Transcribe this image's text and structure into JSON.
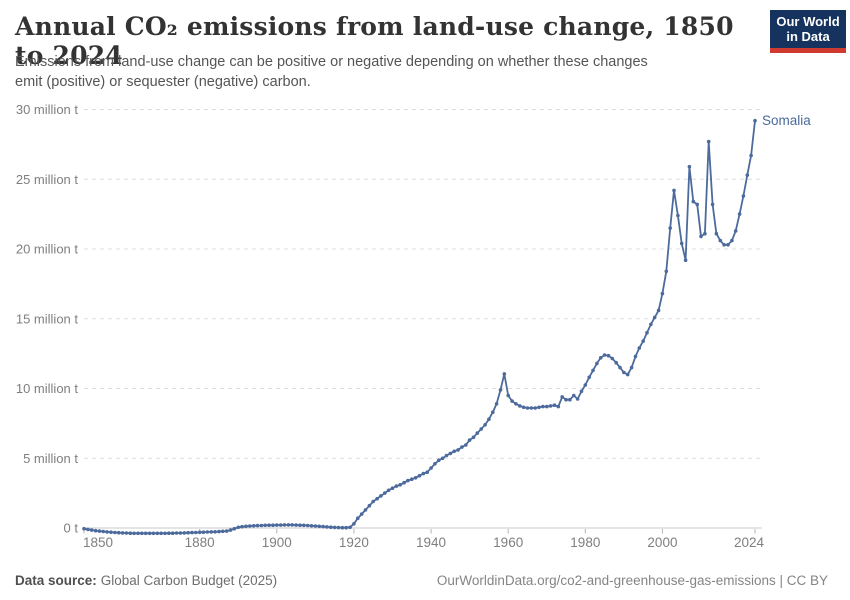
{
  "header": {
    "title": "Annual CO₂ emissions from land-use change, 1850 to 2024",
    "subtitle": "Emissions from land-use change can be positive or negative depending on whether these changes emit (positive) or sequester (negative) carbon.",
    "logo": {
      "line1": "Our World",
      "line2": "in Data",
      "bg_color": "#15335e",
      "bar_color": "#cf3a30"
    }
  },
  "footer": {
    "datasource_label": "Data source:",
    "datasource_value": "Global Carbon Budget (2025)",
    "right_text": "OurWorldinData.org/co2-and-greenhouse-gas-emissions | CC BY"
  },
  "chart_data": {
    "type": "line",
    "title": "Annual CO₂ emissions from land-use change, 1850 to 2024",
    "xlabel": "",
    "ylabel": "",
    "unit": "million t",
    "grid": "dashed horizontal",
    "legend_position": "end-of-line label",
    "xlim": [
      1850,
      2024
    ],
    "ylim": [
      -0.5,
      30
    ],
    "x_ticks": [
      1850,
      1880,
      1900,
      1920,
      1940,
      1960,
      1980,
      2000,
      2024
    ],
    "y_ticks": [
      0,
      5,
      10,
      15,
      20,
      25,
      30
    ],
    "y_tick_labels": [
      "0 t",
      "5 million t",
      "10 million t",
      "15 million t",
      "20 million t",
      "25 million t",
      "30 million t"
    ],
    "years": {
      "start": 1850,
      "end": 2024,
      "step": 1
    },
    "series": [
      {
        "name": "Somalia",
        "color": "#4c6a9c",
        "values_unit": "million tonnes CO2",
        "values": [
          -0.05,
          -0.1,
          -0.15,
          -0.19,
          -0.22,
          -0.25,
          -0.28,
          -0.3,
          -0.32,
          -0.34,
          -0.35,
          -0.36,
          -0.37,
          -0.38,
          -0.38,
          -0.38,
          -0.38,
          -0.38,
          -0.38,
          -0.38,
          -0.38,
          -0.38,
          -0.37,
          -0.37,
          -0.36,
          -0.36,
          -0.35,
          -0.34,
          -0.33,
          -0.32,
          -0.31,
          -0.3,
          -0.29,
          -0.28,
          -0.27,
          -0.26,
          -0.24,
          -0.22,
          -0.15,
          -0.05,
          0.05,
          0.09,
          0.12,
          0.14,
          0.16,
          0.17,
          0.18,
          0.19,
          0.2,
          0.2,
          0.21,
          0.21,
          0.22,
          0.22,
          0.22,
          0.21,
          0.2,
          0.19,
          0.18,
          0.16,
          0.14,
          0.12,
          0.1,
          0.08,
          0.06,
          0.04,
          0.03,
          0.02,
          0.02,
          0.05,
          0.3,
          0.7,
          1.0,
          1.3,
          1.6,
          1.9,
          2.1,
          2.3,
          2.5,
          2.7,
          2.85,
          3.0,
          3.1,
          3.25,
          3.4,
          3.5,
          3.6,
          3.75,
          3.9,
          4.0,
          4.3,
          4.6,
          4.85,
          5.0,
          5.2,
          5.35,
          5.5,
          5.6,
          5.8,
          5.95,
          6.3,
          6.5,
          6.8,
          7.1,
          7.4,
          7.8,
          8.3,
          8.9,
          9.9,
          11.05,
          9.5,
          9.1,
          8.9,
          8.75,
          8.65,
          8.6,
          8.6,
          8.6,
          8.65,
          8.7,
          8.7,
          8.75,
          8.8,
          8.7,
          9.4,
          9.2,
          9.2,
          9.5,
          9.25,
          9.8,
          10.25,
          10.8,
          11.3,
          11.8,
          12.2,
          12.4,
          12.35,
          12.15,
          11.85,
          11.5,
          11.15,
          11.0,
          11.5,
          12.3,
          12.9,
          13.4,
          14.0,
          14.6,
          15.1,
          15.6,
          16.8,
          18.4,
          21.5,
          24.2,
          22.4,
          20.4,
          19.2,
          25.9,
          23.4,
          23.2,
          20.9,
          21.1,
          27.7,
          23.2,
          21.1,
          20.6,
          20.3,
          20.3,
          20.6,
          21.3,
          22.5,
          23.8,
          25.3,
          26.7,
          29.2
        ]
      }
    ]
  }
}
